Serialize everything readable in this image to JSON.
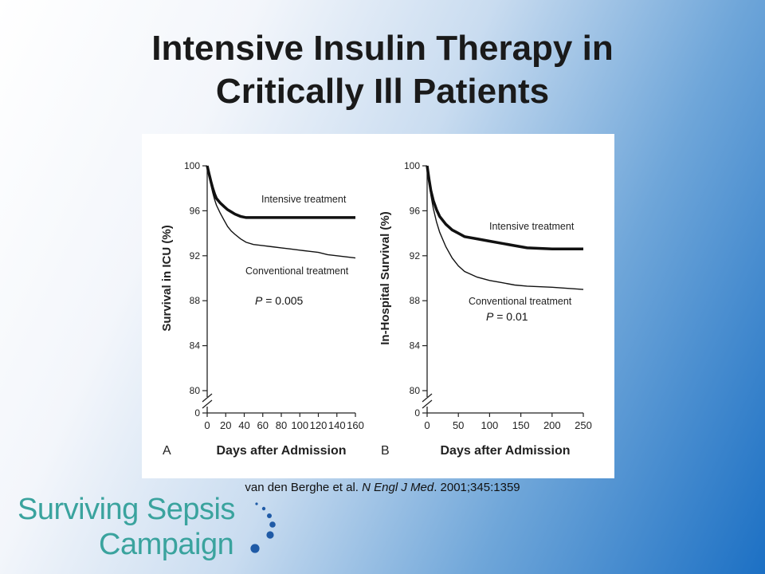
{
  "slide": {
    "title_line1": "Intensive Insulin Therapy in",
    "title_line2": "Critically Ill Patients",
    "citation_authors": "van den Berghe et al.",
    "citation_journal": "N Engl J Med",
    "citation_rest": ". 2001;345:1359"
  },
  "logo": {
    "line1": "Surviving Sepsis",
    "line2": "Campaign",
    "color": "#3aa39e",
    "dot_color": "#1f5aa6"
  },
  "chart_data": [
    {
      "type": "line",
      "panel": "A",
      "xlabel": "Days after Admission",
      "ylabel": "Survival in ICU (%)",
      "xlim": [
        0,
        160
      ],
      "ylim": [
        80,
        100
      ],
      "xticks": [
        0,
        20,
        40,
        60,
        80,
        100,
        120,
        140,
        160
      ],
      "yticks": [
        80,
        84,
        88,
        92,
        96,
        100
      ],
      "extra_ytick": "0",
      "p_value": {
        "italic": "P",
        "rest": " = 0.005"
      },
      "series": [
        {
          "name": "Intensive treatment",
          "stroke_width": 3.5,
          "x": [
            0,
            2,
            4,
            6,
            8,
            10,
            14,
            18,
            22,
            26,
            30,
            36,
            42,
            50,
            60,
            80,
            100,
            120,
            140,
            150,
            160
          ],
          "y": [
            100,
            99.3,
            98.6,
            98.0,
            97.5,
            97.1,
            96.7,
            96.4,
            96.1,
            95.9,
            95.7,
            95.5,
            95.4,
            95.4,
            95.4,
            95.4,
            95.4,
            95.4,
            95.4,
            95.4,
            95.4
          ]
        },
        {
          "name": "Conventional treatment",
          "stroke_width": 1.4,
          "x": [
            0,
            2,
            4,
            6,
            8,
            10,
            14,
            18,
            22,
            26,
            30,
            36,
            42,
            50,
            60,
            70,
            80,
            90,
            100,
            110,
            120,
            130,
            140,
            150,
            160
          ],
          "y": [
            100,
            99.1,
            98.3,
            97.6,
            97.0,
            96.5,
            95.8,
            95.2,
            94.6,
            94.2,
            93.9,
            93.5,
            93.2,
            93.0,
            92.9,
            92.8,
            92.7,
            92.6,
            92.5,
            92.4,
            92.3,
            92.1,
            92.0,
            91.9,
            91.8
          ]
        }
      ]
    },
    {
      "type": "line",
      "panel": "B",
      "xlabel": "Days after Admission",
      "ylabel": "In-Hospital Survival (%)",
      "xlim": [
        0,
        250
      ],
      "ylim": [
        80,
        100
      ],
      "xticks": [
        0,
        50,
        100,
        150,
        200,
        250
      ],
      "yticks": [
        80,
        84,
        88,
        92,
        96,
        100
      ],
      "extra_ytick": "0",
      "p_value": {
        "italic": "P",
        "rest": " = 0.01"
      },
      "series": [
        {
          "name": "Intensive treatment",
          "stroke_width": 3.5,
          "x": [
            0,
            3,
            6,
            10,
            15,
            20,
            30,
            40,
            50,
            60,
            80,
            100,
            120,
            140,
            160,
            200,
            250
          ],
          "y": [
            100,
            98.8,
            97.8,
            96.9,
            96.1,
            95.5,
            94.8,
            94.3,
            94.0,
            93.7,
            93.5,
            93.3,
            93.1,
            92.9,
            92.7,
            92.6,
            92.6
          ]
        },
        {
          "name": "Conventional treatment",
          "stroke_width": 1.4,
          "x": [
            0,
            3,
            6,
            10,
            15,
            20,
            30,
            40,
            50,
            60,
            80,
            100,
            120,
            140,
            160,
            200,
            250
          ],
          "y": [
            100,
            98.6,
            97.4,
            96.2,
            95.0,
            94.1,
            92.8,
            91.8,
            91.1,
            90.6,
            90.1,
            89.8,
            89.6,
            89.4,
            89.3,
            89.2,
            89.0
          ]
        }
      ]
    }
  ]
}
